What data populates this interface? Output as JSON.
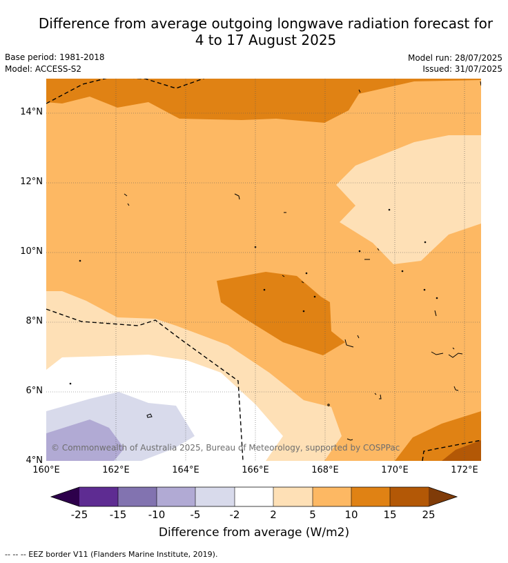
{
  "header": {
    "title_line1": "Difference from average outgoing longwave radiation forecast for",
    "title_line2": "4 to 17 August 2025",
    "base_period": "Base period: 1981-2018",
    "model": "Model: ACCESS-S2",
    "model_run": "Model run: 28/07/2025",
    "issued": "Issued: 31/07/2025"
  },
  "map": {
    "lat_labels": [
      "14°N",
      "12°N",
      "10°N",
      "8°N",
      "6°N",
      "4°N"
    ],
    "lon_labels": [
      "160°E",
      "162°E",
      "164°E",
      "166°E",
      "168°E",
      "170°E",
      "172°E"
    ],
    "copyright": "© Commonwealth of Australia 2025, Bureau of Meteorology, supported by COSPPac"
  },
  "colorbar": {
    "labels": [
      "-25",
      "-15",
      "-10",
      "-5",
      "-2",
      "2",
      "5",
      "10",
      "15",
      "25"
    ],
    "colors": [
      "#2d004b",
      "#5e2c92",
      "#8273b0",
      "#b1aad4",
      "#d8daeb",
      "#ffffff",
      "#fee0b6",
      "#fdb863",
      "#e08214",
      "#b35806",
      "#7f3b08"
    ],
    "title": "Difference from average (W/m2)"
  },
  "footnote": "--  --  -- EEZ border V11 (Flanders Marine Institute, 2019)."
}
